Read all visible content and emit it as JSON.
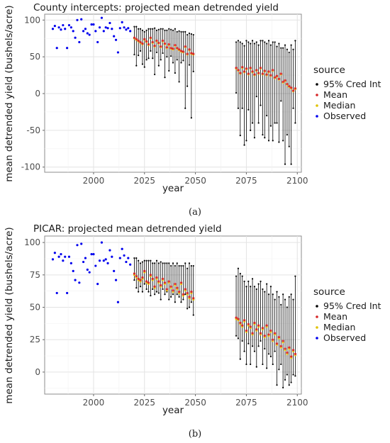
{
  "chart_data": [
    {
      "type": "scatter",
      "title": "County intercepts: projected mean detrended yield",
      "xlabel": "year",
      "ylabel": "mean detrended yield (bushels/acre)",
      "xlim": [
        1976,
        2102
      ],
      "ylim": [
        -107,
        108
      ],
      "xticks": [
        "2000",
        "2025",
        "2050",
        "2075",
        "2100"
      ],
      "yticks": [
        "100",
        "50",
        "0",
        "-50",
        "-100"
      ],
      "grid": true,
      "caption": "(a)",
      "legend": {
        "title": "source",
        "position": "right",
        "entries": [
          "95% Cred Int",
          "Mean",
          "Median",
          "Observed"
        ],
        "colors": [
          "#000000",
          "#d62728",
          "#e0c200",
          "#0000ee"
        ]
      },
      "observed": {
        "x": [
          1980,
          1981,
          1982,
          1983,
          1984,
          1985,
          1986,
          1987,
          1988,
          1989,
          1990,
          1991,
          1992,
          1993,
          1994,
          1995,
          1996,
          1997,
          1998,
          1999,
          2000,
          2001,
          2002,
          2003,
          2004,
          2005,
          2006,
          2007,
          2008,
          2009,
          2010,
          2011,
          2012,
          2013,
          2014,
          2015,
          2016,
          2017,
          2018
        ],
        "y": [
          88,
          92,
          62,
          90,
          87,
          93,
          88,
          62,
          93,
          90,
          85,
          76,
          100,
          70,
          101,
          85,
          88,
          82,
          80,
          94,
          94,
          85,
          70,
          90,
          103,
          85,
          90,
          89,
          96,
          88,
          78,
          73,
          56,
          89,
          97,
          90,
          87,
          89,
          85
        ]
      },
      "projections": [
        {
          "x": [
            2020,
            2021,
            2022,
            2023,
            2024,
            2025,
            2026,
            2027,
            2028,
            2029,
            2030,
            2031,
            2032,
            2033,
            2034,
            2035,
            2036,
            2037,
            2038,
            2039,
            2040,
            2041,
            2042,
            2043,
            2044,
            2045,
            2046,
            2047,
            2048,
            2049
          ],
          "mean": [
            76,
            74,
            72,
            70,
            68,
            74,
            71,
            67,
            76,
            70,
            65,
            72,
            69,
            64,
            72,
            68,
            63,
            67,
            62,
            61,
            66,
            62,
            60,
            58,
            57,
            64,
            54,
            60,
            55,
            54
          ],
          "median": [
            75,
            73,
            71,
            69,
            67,
            73,
            70,
            66,
            75,
            69,
            64,
            71,
            68,
            63,
            71,
            67,
            62,
            66,
            61,
            60,
            65,
            61,
            59,
            57,
            56,
            63,
            53,
            59,
            54,
            53
          ],
          "lo": [
            53,
            38,
            52,
            58,
            40,
            36,
            46,
            48,
            58,
            48,
            26,
            56,
            38,
            46,
            55,
            22,
            50,
            31,
            51,
            42,
            28,
            46,
            16,
            42,
            45,
            -20,
            10,
            39,
            -33,
            30
          ],
          "hi": [
            91,
            91,
            88,
            88,
            86,
            84,
            86,
            88,
            88,
            88,
            89,
            86,
            87,
            88,
            88,
            86,
            86,
            88,
            87,
            86,
            88,
            84,
            85,
            84,
            84,
            84,
            80,
            82,
            81,
            80
          ]
        },
        {
          "x": [
            2070,
            2071,
            2072,
            2073,
            2074,
            2075,
            2076,
            2077,
            2078,
            2079,
            2080,
            2081,
            2082,
            2083,
            2084,
            2085,
            2086,
            2087,
            2088,
            2089,
            2090,
            2091,
            2092,
            2093,
            2094,
            2095,
            2096,
            2097,
            2098,
            2099
          ],
          "mean": [
            35,
            32,
            28,
            36,
            30,
            34,
            27,
            35,
            30,
            26,
            32,
            28,
            35,
            27,
            31,
            26,
            30,
            25,
            32,
            22,
            24,
            20,
            27,
            16,
            18,
            13,
            10,
            8,
            4,
            7
          ],
          "median": [
            34,
            31,
            27,
            35,
            29,
            33,
            26,
            34,
            29,
            25,
            31,
            27,
            34,
            26,
            30,
            25,
            29,
            24,
            31,
            21,
            23,
            19,
            26,
            15,
            17,
            12,
            9,
            7,
            3,
            6
          ],
          "lo": [
            1,
            -20,
            -57,
            -20,
            -70,
            -64,
            -22,
            -50,
            -40,
            -60,
            -4,
            -40,
            -16,
            -56,
            -60,
            -30,
            -64,
            -44,
            -64,
            -40,
            -40,
            -66,
            -10,
            -64,
            -96,
            -56,
            -72,
            -96,
            -20,
            -40
          ],
          "hi": [
            70,
            72,
            70,
            68,
            65,
            72,
            70,
            68,
            72,
            68,
            70,
            66,
            72,
            72,
            70,
            68,
            72,
            66,
            70,
            70,
            64,
            68,
            62,
            62,
            66,
            60,
            56,
            66,
            60,
            72
          ]
        }
      ]
    },
    {
      "type": "scatter",
      "title": "PICAR: projected mean detrended yield",
      "xlabel": "year",
      "ylabel": "mean detrended yield (bushels/acre)",
      "xlim": [
        1976,
        2102
      ],
      "ylim": [
        -17,
        105
      ],
      "xticks": [
        "2000",
        "2025",
        "2050",
        "2075",
        "2100"
      ],
      "yticks": [
        "100",
        "75",
        "50",
        "25",
        "0"
      ],
      "grid": true,
      "caption": "(b)",
      "legend": {
        "title": "source",
        "position": "right",
        "entries": [
          "95% Cred Int",
          "Mean",
          "Median",
          "Observed"
        ],
        "colors": [
          "#000000",
          "#d62728",
          "#e0c200",
          "#0000ee"
        ]
      },
      "observed": {
        "x": [
          1980,
          1981,
          1982,
          1983,
          1984,
          1985,
          1986,
          1987,
          1988,
          1989,
          1990,
          1991,
          1992,
          1993,
          1994,
          1995,
          1996,
          1997,
          1998,
          1999,
          2000,
          2001,
          2002,
          2003,
          2004,
          2005,
          2006,
          2007,
          2008,
          2009,
          2010,
          2011,
          2012,
          2013,
          2014,
          2015,
          2016,
          2017,
          2018
        ],
        "y": [
          87,
          92,
          61,
          89,
          91,
          86,
          89,
          61,
          89,
          84,
          78,
          71,
          98,
          69,
          99,
          85,
          88,
          79,
          77,
          91,
          91,
          82,
          68,
          86,
          100,
          86,
          87,
          84,
          94,
          89,
          78,
          71,
          54,
          88,
          95,
          90,
          85,
          88,
          83
        ]
      },
      "projections": [
        {
          "x": [
            2020,
            2021,
            2022,
            2023,
            2024,
            2025,
            2026,
            2027,
            2028,
            2029,
            2030,
            2031,
            2032,
            2033,
            2034,
            2035,
            2036,
            2037,
            2038,
            2039,
            2040,
            2041,
            2042,
            2043,
            2044,
            2045,
            2046,
            2047,
            2048,
            2049
          ],
          "mean": [
            76,
            74,
            72,
            71,
            73,
            78,
            70,
            69,
            75,
            72,
            66,
            73,
            70,
            67,
            72,
            69,
            64,
            70,
            66,
            63,
            68,
            65,
            62,
            69,
            60,
            64,
            61,
            58,
            62,
            57
          ],
          "median": [
            75,
            73,
            71,
            70,
            72,
            77,
            69,
            68,
            74,
            71,
            65,
            72,
            69,
            66,
            71,
            68,
            63,
            69,
            65,
            62,
            67,
            64,
            61,
            68,
            59,
            63,
            60,
            57,
            61,
            56
          ],
          "lo": [
            71,
            65,
            62,
            66,
            62,
            68,
            64,
            62,
            59,
            64,
            60,
            62,
            61,
            56,
            64,
            60,
            62,
            56,
            58,
            60,
            54,
            60,
            58,
            54,
            56,
            60,
            49,
            50,
            54,
            44
          ],
          "hi": [
            88,
            88,
            86,
            84,
            85,
            86,
            86,
            86,
            86,
            84,
            84,
            86,
            84,
            85,
            84,
            84,
            84,
            84,
            82,
            84,
            82,
            84,
            82,
            82,
            82,
            84,
            80,
            84,
            82,
            82
          ]
        },
        {
          "x": [
            2070,
            2071,
            2072,
            2073,
            2074,
            2075,
            2076,
            2077,
            2078,
            2079,
            2080,
            2081,
            2082,
            2083,
            2084,
            2085,
            2086,
            2087,
            2088,
            2089,
            2090,
            2091,
            2092,
            2093,
            2094,
            2095,
            2096,
            2097,
            2098,
            2099
          ],
          "mean": [
            42,
            41,
            38,
            36,
            40,
            32,
            37,
            35,
            30,
            38,
            33,
            36,
            30,
            34,
            28,
            36,
            29,
            32,
            25,
            30,
            22,
            27,
            20,
            24,
            18,
            15,
            19,
            12,
            17,
            14
          ],
          "median": [
            41,
            40,
            37,
            35,
            39,
            31,
            36,
            34,
            29,
            37,
            32,
            35,
            29,
            33,
            27,
            35,
            28,
            31,
            24,
            29,
            21,
            26,
            19,
            23,
            17,
            14,
            18,
            11,
            16,
            13
          ],
          "lo": [
            28,
            26,
            10,
            24,
            16,
            6,
            22,
            6,
            20,
            16,
            4,
            20,
            24,
            6,
            18,
            3,
            14,
            12,
            6,
            16,
            -10,
            2,
            6,
            -12,
            -6,
            -2,
            -10,
            -8,
            -2,
            -3
          ],
          "hi": [
            74,
            80,
            76,
            74,
            70,
            66,
            70,
            66,
            72,
            66,
            64,
            68,
            70,
            64,
            62,
            68,
            60,
            66,
            60,
            56,
            62,
            58,
            52,
            60,
            56,
            50,
            58,
            60,
            56,
            74
          ]
        }
      ]
    }
  ]
}
